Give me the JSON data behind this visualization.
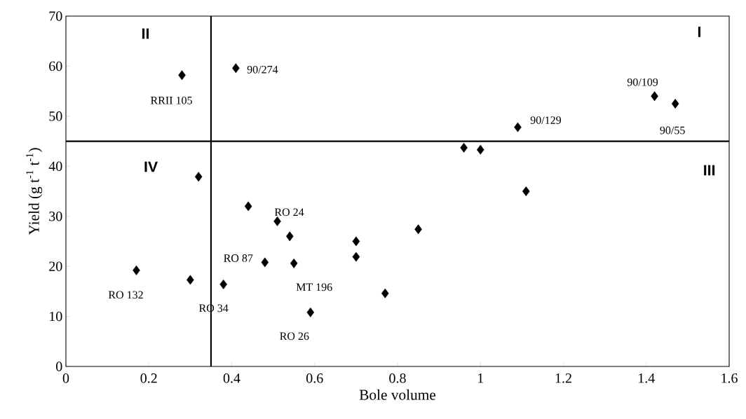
{
  "chart_data": {
    "type": "scatter",
    "xlabel": "Bole volume",
    "ylabel": "Yield (g t$^{-1}$ t$^{-1}$)",
    "x": [
      0.17,
      0.28,
      0.3,
      0.32,
      0.38,
      0.41,
      0.44,
      0.48,
      0.51,
      0.54,
      0.55,
      0.59,
      0.7,
      0.7,
      0.77,
      0.85,
      0.96,
      1.0,
      1.09,
      1.11,
      1.42,
      1.47
    ],
    "values": [
      19.2,
      58.2,
      17.3,
      37.9,
      16.4,
      59.6,
      32,
      20.8,
      29,
      26,
      20.6,
      10.8,
      25,
      21.9,
      14.6,
      27.4,
      43.7,
      43.3,
      47.8,
      35,
      54,
      52.5
    ],
    "color": "#000000",
    "marker": "diamond",
    "xlim": [
      0,
      1.6
    ],
    "xticks": [
      0,
      0.2,
      0.4,
      0.6,
      0.8,
      1,
      1.2,
      1.4,
      1.6
    ],
    "ylim": [
      0,
      70
    ],
    "yticks": [
      0,
      10,
      20,
      30,
      40,
      50,
      60,
      70
    ],
    "ref_lines": [
      {
        "axis": "x",
        "value": 0.35,
        "color": "#000000"
      },
      {
        "axis": "y",
        "value": 45,
        "color": "#000000"
      }
    ],
    "annotations": [
      "I",
      "II",
      "III",
      "IV",
      {
        "text": "RRII 105",
        "x": 0.28,
        "y": 58.2
      },
      {
        "text": "90/274",
        "x": 0.41,
        "y": 59.6
      },
      {
        "text": "90/129",
        "x": 1.09,
        "y": 47.8
      },
      {
        "text": "90/109",
        "x": 1.42,
        "y": 54
      },
      {
        "text": "90/55",
        "x": 1.47,
        "y": 52.5
      },
      {
        "text": "RO 24",
        "x": 0.51,
        "y": 29
      },
      {
        "text": "RO 87",
        "x": 0.48,
        "y": 20.8
      },
      {
        "text": "MT 196",
        "x": 0.55,
        "y": 20.6
      },
      {
        "text": "RO 132",
        "x": 0.17,
        "y": 19.2
      },
      {
        "text": "RO 34",
        "x": 0.38,
        "y": 16.4
      },
      {
        "text": "RO 26",
        "x": 0.59,
        "y": 10.8
      }
    ],
    "grid": false
  }
}
